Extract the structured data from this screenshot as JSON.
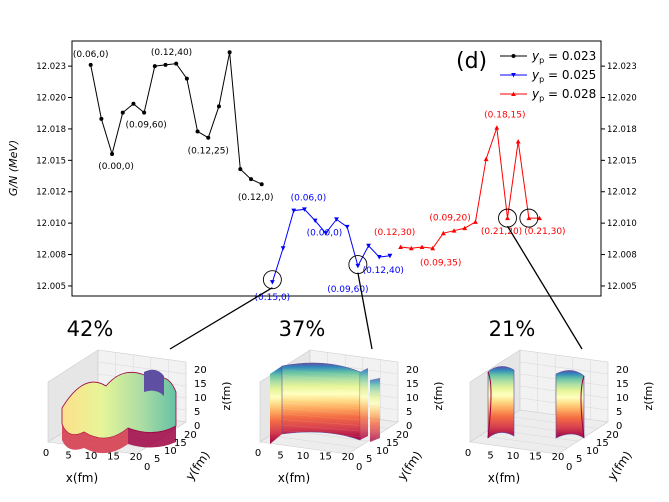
{
  "chart_data": {
    "type": "line",
    "panel_label": "(d)",
    "ylabel": "G/N (MeV)",
    "xlabel": "",
    "ylim": [
      12.0042,
      12.0245
    ],
    "yticks": [
      "12.005",
      "12.008",
      "12.010",
      "12.012",
      "12.015",
      "12.018",
      "12.020",
      "12.023"
    ],
    "ytick_values": [
      12.005,
      12.0075,
      12.01,
      12.0125,
      12.015,
      12.0175,
      12.02,
      12.0225
    ],
    "x": [
      1,
      2,
      3,
      4,
      5,
      6,
      7,
      8,
      9,
      10,
      11,
      12,
      13,
      14,
      15,
      16,
      17,
      18,
      19,
      20,
      21,
      22,
      23,
      24,
      25,
      26,
      27,
      28,
      29,
      30,
      31,
      32,
      33,
      34,
      35,
      36,
      37,
      38,
      39,
      40,
      41,
      42,
      43,
      44,
      45,
      46
    ],
    "xlim": [
      0,
      48
    ],
    "series": [
      {
        "name": "y_p = 0.023",
        "legend_prefix": "y",
        "legend_sub": "p",
        "legend_value": " = 0.023",
        "color": "#000000",
        "marker": "circle",
        "x": [
          1,
          2,
          3,
          4,
          5,
          6,
          7,
          8,
          9,
          10,
          11,
          12,
          13,
          14,
          15,
          16,
          17
        ],
        "values": [
          12.0226,
          12.0183,
          12.0155,
          12.0188,
          12.0195,
          12.0188,
          12.0225,
          12.0226,
          12.0227,
          12.0215,
          12.0173,
          12.0168,
          12.0193,
          12.0236,
          12.0143,
          12.0135,
          12.0131
        ]
      },
      {
        "name": "y_p = 0.025",
        "legend_prefix": "y",
        "legend_sub": "p",
        "legend_value": " = 0.025",
        "color": "#0000ff",
        "marker": "triangle-down",
        "x": [
          18,
          19,
          20,
          21,
          22,
          23,
          24,
          25,
          26,
          27,
          28,
          29
        ],
        "values": [
          12.0053,
          12.008,
          12.011,
          12.0111,
          12.0102,
          12.0092,
          12.0103,
          12.0097,
          12.0066,
          12.0082,
          12.0073,
          12.0074
        ]
      },
      {
        "name": "y_p = 0.028",
        "legend_prefix": "y",
        "legend_sub": "p",
        "legend_value": " = 0.028",
        "color": "#ff0000",
        "marker": "triangle-up",
        "x": [
          30,
          31,
          32,
          33,
          34,
          35,
          36,
          37,
          38,
          39,
          40,
          41,
          42,
          43
        ],
        "values": [
          12.0081,
          12.008,
          12.0081,
          12.008,
          12.0092,
          12.0094,
          12.0096,
          12.0101,
          12.0151,
          12.0176,
          12.0104,
          12.0165,
          12.0104,
          12.0104
        ]
      }
    ],
    "annotations": [
      {
        "text": "(0.06,0)",
        "series": 0,
        "x": 1,
        "y": 12.0226,
        "color": "#000000",
        "dx": 0,
        "dy": -8
      },
      {
        "text": "(0.00,0)",
        "series": 0,
        "x": 3,
        "y": 12.0155,
        "color": "#000000",
        "dx": 4,
        "dy": 15
      },
      {
        "text": "(0.09,60)",
        "series": 0,
        "x": 6,
        "y": 12.0188,
        "color": "#000000",
        "dx": 2,
        "dy": 15
      },
      {
        "text": "(0.12,40)",
        "series": 0,
        "x": 8,
        "y": 12.0226,
        "color": "#000000",
        "dx": 6,
        "dy": -10
      },
      {
        "text": "(0.12,25)",
        "series": 0,
        "x": 12,
        "y": 12.0168,
        "color": "#000000",
        "dx": 0,
        "dy": 16
      },
      {
        "text": "(0.12,0)",
        "series": 0,
        "x": 17,
        "y": 12.0131,
        "color": "#000000",
        "dx": -6,
        "dy": 16
      },
      {
        "text": "(0.06,0)",
        "series": 1,
        "x": 21,
        "y": 12.0111,
        "color": "#0000ff",
        "dx": 4,
        "dy": -9
      },
      {
        "text": "(0.00,0)",
        "series": 1,
        "x": 24,
        "y": 12.0103,
        "color": "#0000ff",
        "dx": -12,
        "dy": 16
      },
      {
        "text": "(0.15,0)",
        "series": 1,
        "x": 18,
        "y": 12.0053,
        "color": "#0000ff",
        "dx": 0,
        "dy": 18
      },
      {
        "text": "(0.09,60)",
        "series": 1,
        "x": 26,
        "y": 12.0066,
        "color": "#0000ff",
        "dx": -10,
        "dy": 26
      },
      {
        "text": "(0.12,40)",
        "series": 1,
        "x": 28,
        "y": 12.0073,
        "color": "#0000ff",
        "dx": 4,
        "dy": 16
      },
      {
        "text": "(0.12,30)",
        "series": 2,
        "x": 30,
        "y": 12.0081,
        "color": "#ff0000",
        "dx": -6,
        "dy": -12
      },
      {
        "text": "(0.09,20)",
        "series": 2,
        "x": 35,
        "y": 12.0094,
        "color": "#ff0000",
        "dx": -4,
        "dy": -10
      },
      {
        "text": "(0.09,35)",
        "series": 2,
        "x": 33,
        "y": 12.008,
        "color": "#ff0000",
        "dx": 8,
        "dy": 17
      },
      {
        "text": "(0.18,15)",
        "series": 2,
        "x": 39,
        "y": 12.0176,
        "color": "#ff0000",
        "dx": 8,
        "dy": -10
      },
      {
        "text": "(0.21,20)",
        "series": 2,
        "x": 40,
        "y": 12.0104,
        "color": "#ff0000",
        "dx": -6,
        "dy": 16
      },
      {
        "text": "(0.21,30)",
        "series": 2,
        "x": 42,
        "y": 12.0104,
        "color": "#ff0000",
        "dx": 16,
        "dy": 16
      }
    ],
    "circles": [
      {
        "x": 18,
        "y": 12.0055
      },
      {
        "x": 26,
        "y": 12.0067
      },
      {
        "x": 40,
        "y": 12.0104
      },
      {
        "x": 42,
        "y": 12.0104
      }
    ]
  },
  "insets": [
    {
      "percent": "42%",
      "pattern": "cross",
      "xlabel": "x(fm)",
      "ylabel": "y(fm)",
      "zlabel": "z(fm)",
      "xticks": [
        "0",
        "5",
        "10",
        "15",
        "20"
      ],
      "yticks": [
        "0",
        "5",
        "10",
        "15",
        "20"
      ],
      "zticks": [
        "0",
        "5",
        "10",
        "15",
        "20"
      ]
    },
    {
      "percent": "37%",
      "pattern": "slab",
      "xlabel": "x(fm)",
      "ylabel": "y(fm)",
      "zlabel": "z(fm)",
      "xticks": [
        "0",
        "5",
        "10",
        "15",
        "20"
      ],
      "yticks": [
        "0",
        "5",
        "10",
        "15",
        "20"
      ],
      "zticks": [
        "0",
        "5",
        "10",
        "15",
        "20"
      ]
    },
    {
      "percent": "21%",
      "pattern": "tube",
      "xlabel": "x(fm)",
      "ylabel": "y(fm)",
      "zlabel": "z(fm)",
      "xticks": [
        "0",
        "5",
        "10",
        "15",
        "20"
      ],
      "yticks": [
        "0",
        "5",
        "10",
        "15",
        "20"
      ],
      "zticks": [
        "0",
        "5",
        "10",
        "15",
        "20"
      ]
    }
  ],
  "colors": {
    "axis": "#000000",
    "grid": "#d0d0d0",
    "pane": "#f2f2f2",
    "pane_dark": "#e6e6e6"
  }
}
